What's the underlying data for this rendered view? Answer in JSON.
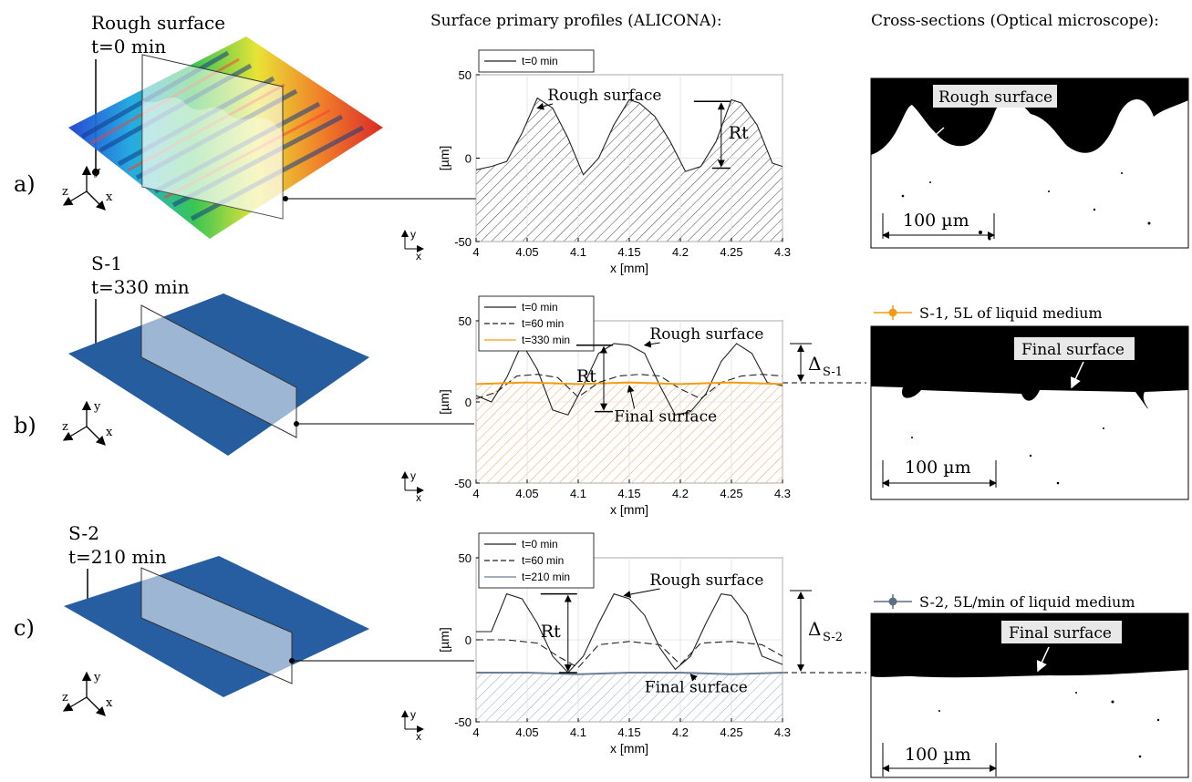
{
  "headers": {
    "profiles": "Surface primary profiles (ALICONA):",
    "cross_sections": "Cross-sections (Optical microscope):"
  },
  "rows": [
    {
      "letter": "a)",
      "sample": "Rough surface",
      "time": "t=0 min",
      "surface_color": "rainbow",
      "cs_legend": "",
      "cs_label": "Rough surface",
      "scale_bar": "100 µm",
      "delta_label": "",
      "delta_sub": ""
    },
    {
      "letter": "b)",
      "sample": "S-1",
      "time": "t=330 min",
      "surface_color": "#2a63a8",
      "cs_legend": "S-1, 5L of liquid medium",
      "cs_legend_color": "#f39c12",
      "cs_label": "Final surface",
      "scale_bar": "100 µm",
      "delta_label": "Δ",
      "delta_sub": "S-1"
    },
    {
      "letter": "c)",
      "sample": "S-2",
      "time": "t=210 min",
      "surface_color": "#2a63a8",
      "cs_legend": "S-2, 5L/min of liquid medium",
      "cs_legend_color": "#5a6e84",
      "cs_label": "Final surface",
      "scale_bar": "100 µm",
      "delta_label": "Δ",
      "delta_sub": "S-2"
    }
  ],
  "axes_labels": {
    "y": "y",
    "z": "z",
    "x": "x"
  },
  "chart_data": [
    {
      "type": "line",
      "xlabel": "x [mm]",
      "ylabel": "[µm]",
      "xlim": [
        4,
        4.3
      ],
      "ylim": [
        -50,
        50
      ],
      "xticks": [
        "4",
        "4.05",
        "4.1",
        "4.15",
        "4.2",
        "4.25",
        "4.3"
      ],
      "yticks": [
        "-50",
        "0",
        "50"
      ],
      "grid": true,
      "legend_position": "top-left",
      "series": [
        {
          "name": "t=0 min",
          "dash": "solid",
          "color": "#222222",
          "x": [
            4.0,
            4.015,
            4.03,
            4.045,
            4.06,
            4.075,
            4.09,
            4.105,
            4.12,
            4.135,
            4.15,
            4.16,
            4.175,
            4.19,
            4.205,
            4.22,
            4.235,
            4.25,
            4.26,
            4.275,
            4.29,
            4.3
          ],
          "y": [
            -7,
            -5,
            -2,
            15,
            36,
            30,
            12,
            -10,
            0,
            20,
            35,
            33,
            25,
            10,
            -8,
            -5,
            10,
            35,
            33,
            20,
            -3,
            -5
          ]
        }
      ],
      "fill": {
        "color": "#555555",
        "base": -50
      },
      "annotations": {
        "rough_label": "Rough surface",
        "rt_label": "Rt",
        "final_label": "",
        "rt_x": 4.24,
        "rt_top": 34,
        "rt_bottom": -6
      }
    },
    {
      "type": "line",
      "xlabel": "x [mm]",
      "ylabel": "[µm]",
      "xlim": [
        4,
        4.3
      ],
      "ylim": [
        -50,
        50
      ],
      "xticks": [
        "4",
        "4.05",
        "4.1",
        "4.15",
        "4.2",
        "4.25",
        "4.3"
      ],
      "yticks": [
        "-50",
        "0",
        "50"
      ],
      "grid": true,
      "legend_position": "top-left",
      "series": [
        {
          "name": "t=0 min",
          "dash": "solid",
          "color": "#222222",
          "x": [
            4.0,
            4.015,
            4.03,
            4.045,
            4.06,
            4.075,
            4.09,
            4.105,
            4.12,
            4.135,
            4.15,
            4.165,
            4.18,
            4.195,
            4.21,
            4.225,
            4.24,
            4.255,
            4.27,
            4.285,
            4.3
          ],
          "y": [
            4,
            0,
            15,
            36,
            20,
            -5,
            -8,
            10,
            30,
            36,
            35,
            30,
            10,
            -8,
            -6,
            5,
            25,
            36,
            30,
            12,
            10
          ]
        },
        {
          "name": "t=60 min",
          "dash": "dashed",
          "color": "#222222",
          "x": [
            4.0,
            4.02,
            4.04,
            4.06,
            4.08,
            4.1,
            4.12,
            4.14,
            4.16,
            4.18,
            4.2,
            4.22,
            4.24,
            4.26,
            4.28,
            4.3
          ],
          "y": [
            2,
            6,
            16,
            17,
            15,
            3,
            12,
            16,
            17,
            16,
            8,
            2,
            12,
            16,
            17,
            16
          ]
        },
        {
          "name": "t=330 min",
          "dash": "solid",
          "color": "#f39c12",
          "x": [
            4.0,
            4.05,
            4.1,
            4.15,
            4.2,
            4.25,
            4.3
          ],
          "y": [
            11,
            12,
            11,
            12,
            11,
            12,
            11
          ]
        }
      ],
      "fill": {
        "color": "#f39c12",
        "base": -50
      },
      "annotations": {
        "rough_label": "Rough surface",
        "rt_label": "Rt",
        "final_label": "Final surface",
        "rt_x": 4.125,
        "rt_top": 35,
        "rt_bottom": -6
      }
    },
    {
      "type": "line",
      "xlabel": "x [mm]",
      "ylabel": "[µm]",
      "xlim": [
        4,
        4.3
      ],
      "ylim": [
        -50,
        50
      ],
      "xticks": [
        "4",
        "4.05",
        "4.1",
        "4.15",
        "4.2",
        "4.25",
        "4.3"
      ],
      "yticks": [
        "-50",
        "0",
        "50"
      ],
      "grid": true,
      "legend_position": "top-left",
      "series": [
        {
          "name": "t=0 min",
          "dash": "solid",
          "color": "#222222",
          "x": [
            4.0,
            4.015,
            4.03,
            4.045,
            4.06,
            4.075,
            4.09,
            4.105,
            4.12,
            4.135,
            4.15,
            4.165,
            4.18,
            4.195,
            4.21,
            4.225,
            4.24,
            4.25,
            4.265,
            4.28,
            4.3
          ],
          "y": [
            5,
            5,
            28,
            25,
            10,
            -10,
            -20,
            -10,
            10,
            28,
            25,
            15,
            -5,
            -18,
            -10,
            10,
            28,
            27,
            15,
            -10,
            -15
          ]
        },
        {
          "name": "t=60 min",
          "dash": "dashed",
          "color": "#222222",
          "x": [
            4.0,
            4.03,
            4.06,
            4.08,
            4.1,
            4.12,
            4.15,
            4.18,
            4.2,
            4.22,
            4.25,
            4.28,
            4.3
          ],
          "y": [
            0,
            0,
            -2,
            -10,
            -17,
            -3,
            -1,
            -3,
            -15,
            -2,
            -1,
            -3,
            -10
          ]
        },
        {
          "name": "t=210 min",
          "dash": "solid",
          "color": "#6a7f96",
          "x": [
            4.0,
            4.05,
            4.1,
            4.15,
            4.2,
            4.25,
            4.3
          ],
          "y": [
            -20,
            -20,
            -21,
            -20,
            -20,
            -21,
            -20
          ]
        }
      ],
      "fill": {
        "color": "#6a7f96",
        "base": -50
      },
      "annotations": {
        "rough_label": "Rough surface",
        "rt_label": "Rt",
        "final_label": "Final surface",
        "rt_x": 4.09,
        "rt_top": 28,
        "rt_bottom": -20
      }
    }
  ]
}
